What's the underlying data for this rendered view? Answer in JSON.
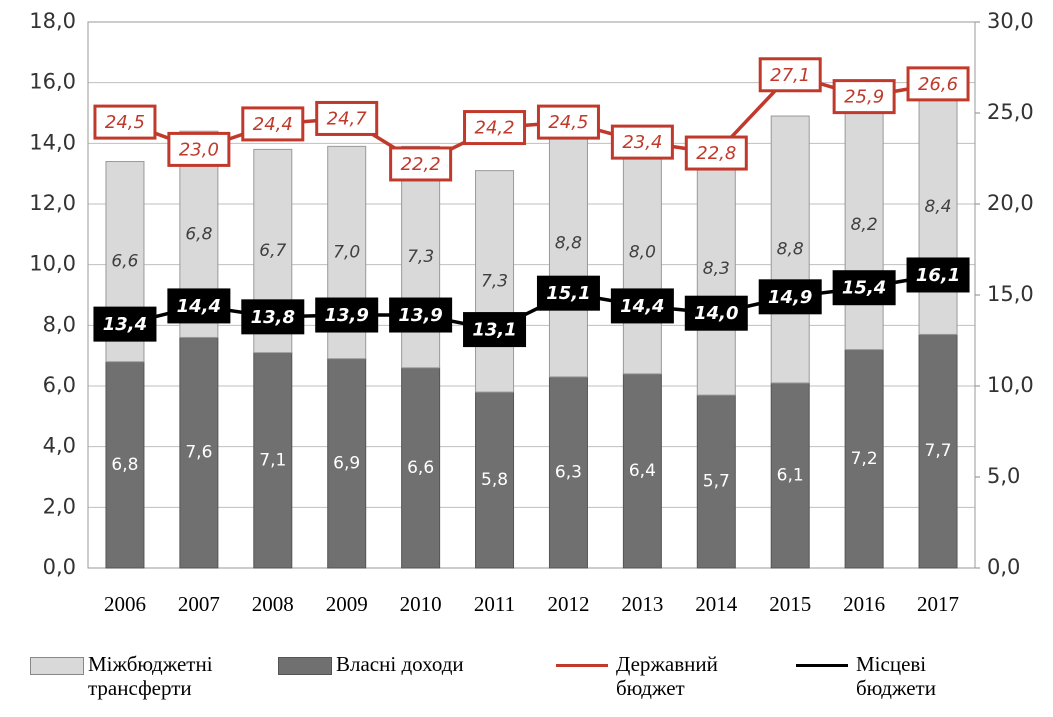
{
  "chart_data": {
    "type": "bar",
    "categories": [
      "2006",
      "2007",
      "2008",
      "2009",
      "2010",
      "2011",
      "2012",
      "2013",
      "2014",
      "2015",
      "2016",
      "2017"
    ],
    "series": [
      {
        "name": "Власні доходи",
        "color": "#707070",
        "values": [
          6.8,
          7.6,
          7.1,
          6.9,
          6.6,
          5.8,
          6.3,
          6.4,
          5.7,
          6.1,
          7.2,
          7.7
        ],
        "value_labels": [
          "6,8",
          "7,6",
          "7,1",
          "6,9",
          "6,6",
          "5,8",
          "6,3",
          "6,4",
          "5,7",
          "6,1",
          "7,2",
          "7,7"
        ]
      },
      {
        "name": "Міжбюджетні трансферти",
        "color": "#d9d9d9",
        "values": [
          6.6,
          6.8,
          6.7,
          7.0,
          7.3,
          7.3,
          8.8,
          8.0,
          8.3,
          8.8,
          8.2,
          8.4
        ],
        "value_labels": [
          "6,6",
          "6,8",
          "6,7",
          "7,0",
          "7,3",
          "7,3",
          "8,8",
          "8,0",
          "8,3",
          "8,8",
          "8,2",
          "8,4"
        ]
      },
      {
        "name": "Державний бюджет",
        "type": "line",
        "axis": "y2",
        "color": "#c0392b",
        "values": [
          24.5,
          23.0,
          24.4,
          24.7,
          22.2,
          24.2,
          24.5,
          23.4,
          22.8,
          27.1,
          25.9,
          26.6
        ],
        "value_labels": [
          "24,5",
          "23,0",
          "24,4",
          "24,7",
          "22,2",
          "24,2",
          "24,5",
          "23,4",
          "22,8",
          "27,1",
          "25,9",
          "26,6"
        ]
      },
      {
        "name": "Місцеві бюджети",
        "type": "line",
        "axis": "y2",
        "color": "#000000",
        "values": [
          13.4,
          14.4,
          13.8,
          13.9,
          13.9,
          13.1,
          15.1,
          14.4,
          14.0,
          14.9,
          15.4,
          16.1
        ],
        "value_labels": [
          "13,4",
          "14,4",
          "13,8",
          "13,9",
          "13,9",
          "13,1",
          "15,1",
          "14,4",
          "14,0",
          "14,9",
          "15,4",
          "16,1"
        ]
      }
    ],
    "ylim": [
      0,
      18
    ],
    "yticks": [
      {
        "value": 0,
        "label": "0,0"
      },
      {
        "value": 2,
        "label": "2,0"
      },
      {
        "value": 4,
        "label": "4,0"
      },
      {
        "value": 6,
        "label": "6,0"
      },
      {
        "value": 8,
        "label": "8,0"
      },
      {
        "value": 10,
        "label": "10,0"
      },
      {
        "value": 12,
        "label": "12,0"
      },
      {
        "value": 14,
        "label": "14,0"
      },
      {
        "value": 16,
        "label": "16,0"
      },
      {
        "value": 18,
        "label": "18,0"
      }
    ],
    "y2lim": [
      0,
      30
    ],
    "y2ticks": [
      {
        "value": 0,
        "label": "0,0"
      },
      {
        "value": 5,
        "label": "5,0"
      },
      {
        "value": 10,
        "label": "10,0"
      },
      {
        "value": 15,
        "label": "15,0"
      },
      {
        "value": 20,
        "label": "20,0"
      },
      {
        "value": 25,
        "label": "25,0"
      },
      {
        "value": 30,
        "label": "30,0"
      }
    ],
    "grid": true
  }
}
